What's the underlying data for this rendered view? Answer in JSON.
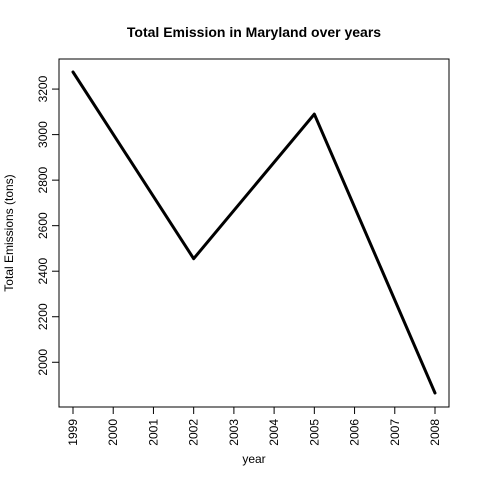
{
  "chart_data": {
    "type": "line",
    "title": "Total Emission in Maryland over years",
    "xlabel": "year",
    "ylabel": "Total Emissions (tons)",
    "x": [
      1999,
      2002,
      2005,
      2008
    ],
    "series": [
      {
        "values": [
          3275,
          2455,
          3090,
          1865
        ],
        "color": "#000000"
      }
    ],
    "xlim": [
      1999,
      2008
    ],
    "ylim": [
      1865,
      3275
    ],
    "xticks": [
      1999,
      2000,
      2001,
      2002,
      2003,
      2004,
      2005,
      2006,
      2007,
      2008
    ],
    "yticks": [
      2000,
      2200,
      2400,
      2600,
      2800,
      3000,
      3200
    ],
    "grid": false
  }
}
